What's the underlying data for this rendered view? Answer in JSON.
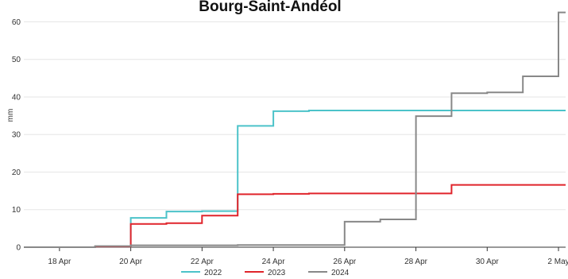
{
  "chart_data": {
    "type": "line",
    "title": "Bourg-Saint-Andéol",
    "xlabel": "",
    "ylabel": "mm",
    "x_ticks": [
      "18 Apr",
      "20 Apr",
      "22 Apr",
      "24 Apr",
      "26 Apr",
      "28 Apr",
      "30 Apr",
      "2 May"
    ],
    "x_tick_days": [
      18,
      20,
      22,
      24,
      26,
      28,
      30,
      32
    ],
    "xlim": [
      17.0,
      32.2
    ],
    "y_ticks": [
      0,
      10,
      20,
      30,
      40,
      50,
      60
    ],
    "ylim": [
      0,
      62
    ],
    "grid": true,
    "legend_position": "bottom",
    "step": "after",
    "series": [
      {
        "name": "2022",
        "color": "#4cc3c9",
        "x": [
          17.0,
          19.0,
          20.0,
          21.0,
          22.0,
          23.0,
          24.0,
          25.0,
          26.0,
          27.0,
          28.0,
          29.0,
          30.0,
          31.0,
          32.0,
          32.2
        ],
        "values": [
          0,
          0.2,
          7.8,
          9.5,
          9.6,
          32.3,
          36.2,
          36.4,
          36.4,
          36.4,
          36.4,
          36.4,
          36.4,
          36.4,
          36.4,
          36.4
        ]
      },
      {
        "name": "2023",
        "color": "#e0242b",
        "x": [
          17.0,
          19.0,
          20.0,
          21.0,
          22.0,
          23.0,
          24.0,
          25.0,
          26.0,
          27.0,
          28.0,
          29.0,
          30.0,
          31.0,
          32.0,
          32.2
        ],
        "values": [
          0,
          0.2,
          6.2,
          6.4,
          8.4,
          14.1,
          14.2,
          14.3,
          14.3,
          14.3,
          14.3,
          16.6,
          16.6,
          16.6,
          16.6,
          16.6
        ]
      },
      {
        "name": "2024",
        "color": "#888888",
        "x": [
          17.0,
          19.0,
          20.0,
          21.0,
          22.0,
          23.0,
          24.0,
          25.0,
          26.0,
          27.0,
          28.0,
          29.0,
          30.0,
          31.0,
          32.0,
          32.2
        ],
        "values": [
          0,
          0.3,
          0.5,
          0.5,
          0.5,
          0.6,
          0.6,
          0.6,
          6.8,
          7.4,
          34.9,
          41.0,
          41.2,
          45.5,
          62.5,
          62.5
        ]
      }
    ]
  }
}
